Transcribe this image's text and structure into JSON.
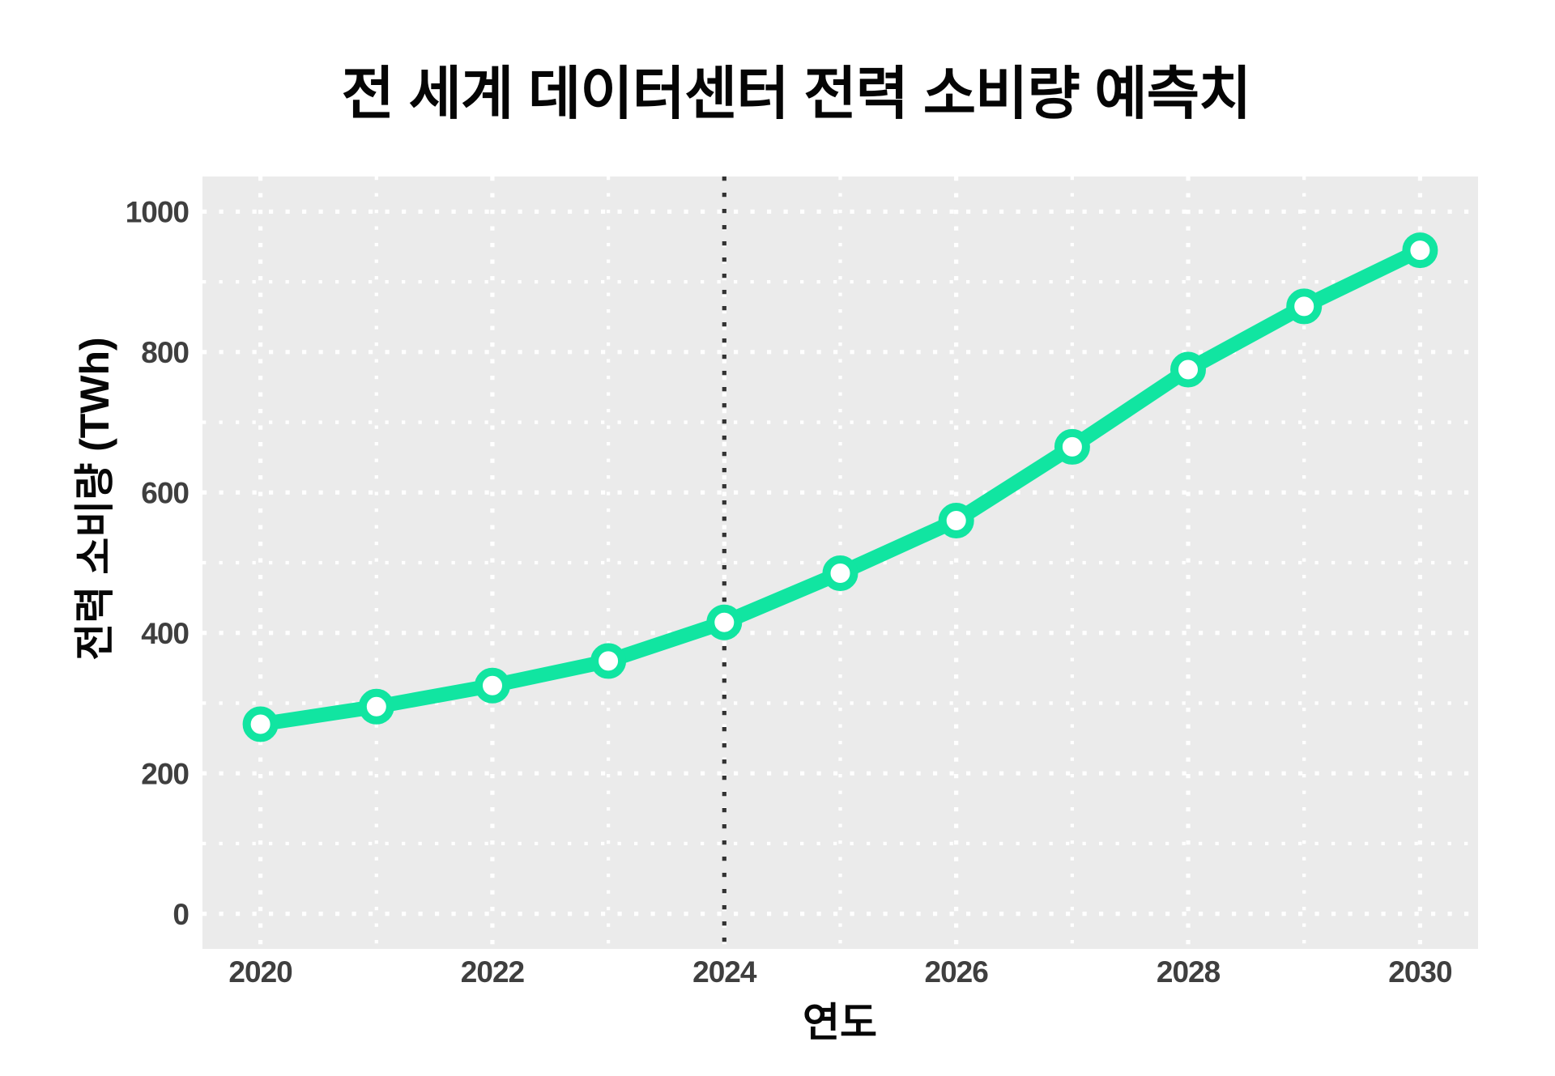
{
  "chart_data": {
    "type": "line",
    "title": "전 세계 데이터센터 전력 소비량 예측치",
    "xlabel": "연도",
    "ylabel": "전력 소비량 (TWh)",
    "series": [
      {
        "name": "전력 소비량",
        "x": [
          2020,
          2021,
          2022,
          2023,
          2024,
          2025,
          2026,
          2027,
          2028,
          2029,
          2030
        ],
        "values": [
          270,
          295,
          325,
          360,
          415,
          485,
          560,
          665,
          775,
          865,
          945
        ]
      }
    ],
    "x_ticks": [
      2020,
      2022,
      2024,
      2026,
      2028,
      2030
    ],
    "x_minor_ticks": [
      2021,
      2023,
      2025,
      2027,
      2029
    ],
    "y_ticks": [
      0,
      200,
      400,
      600,
      800,
      1000
    ],
    "y_minor_ticks": [
      100,
      300,
      500,
      700,
      900
    ],
    "xlim": [
      2019.5,
      2030.5
    ],
    "ylim": [
      -50,
      1050
    ],
    "grid": "on-dotted",
    "legend": "none",
    "annotations": [
      {
        "type": "vline",
        "x": 2024,
        "style": "dotted",
        "color": "#333333"
      }
    ],
    "colors": {
      "line": "#11E5A1",
      "marker_fill": "#ffffff",
      "panel_background": "#EBEBEB",
      "grid": "#ffffff",
      "tick_label": "#3f3f3f",
      "title_text": "#050505",
      "page_background": "#ffffff"
    }
  }
}
